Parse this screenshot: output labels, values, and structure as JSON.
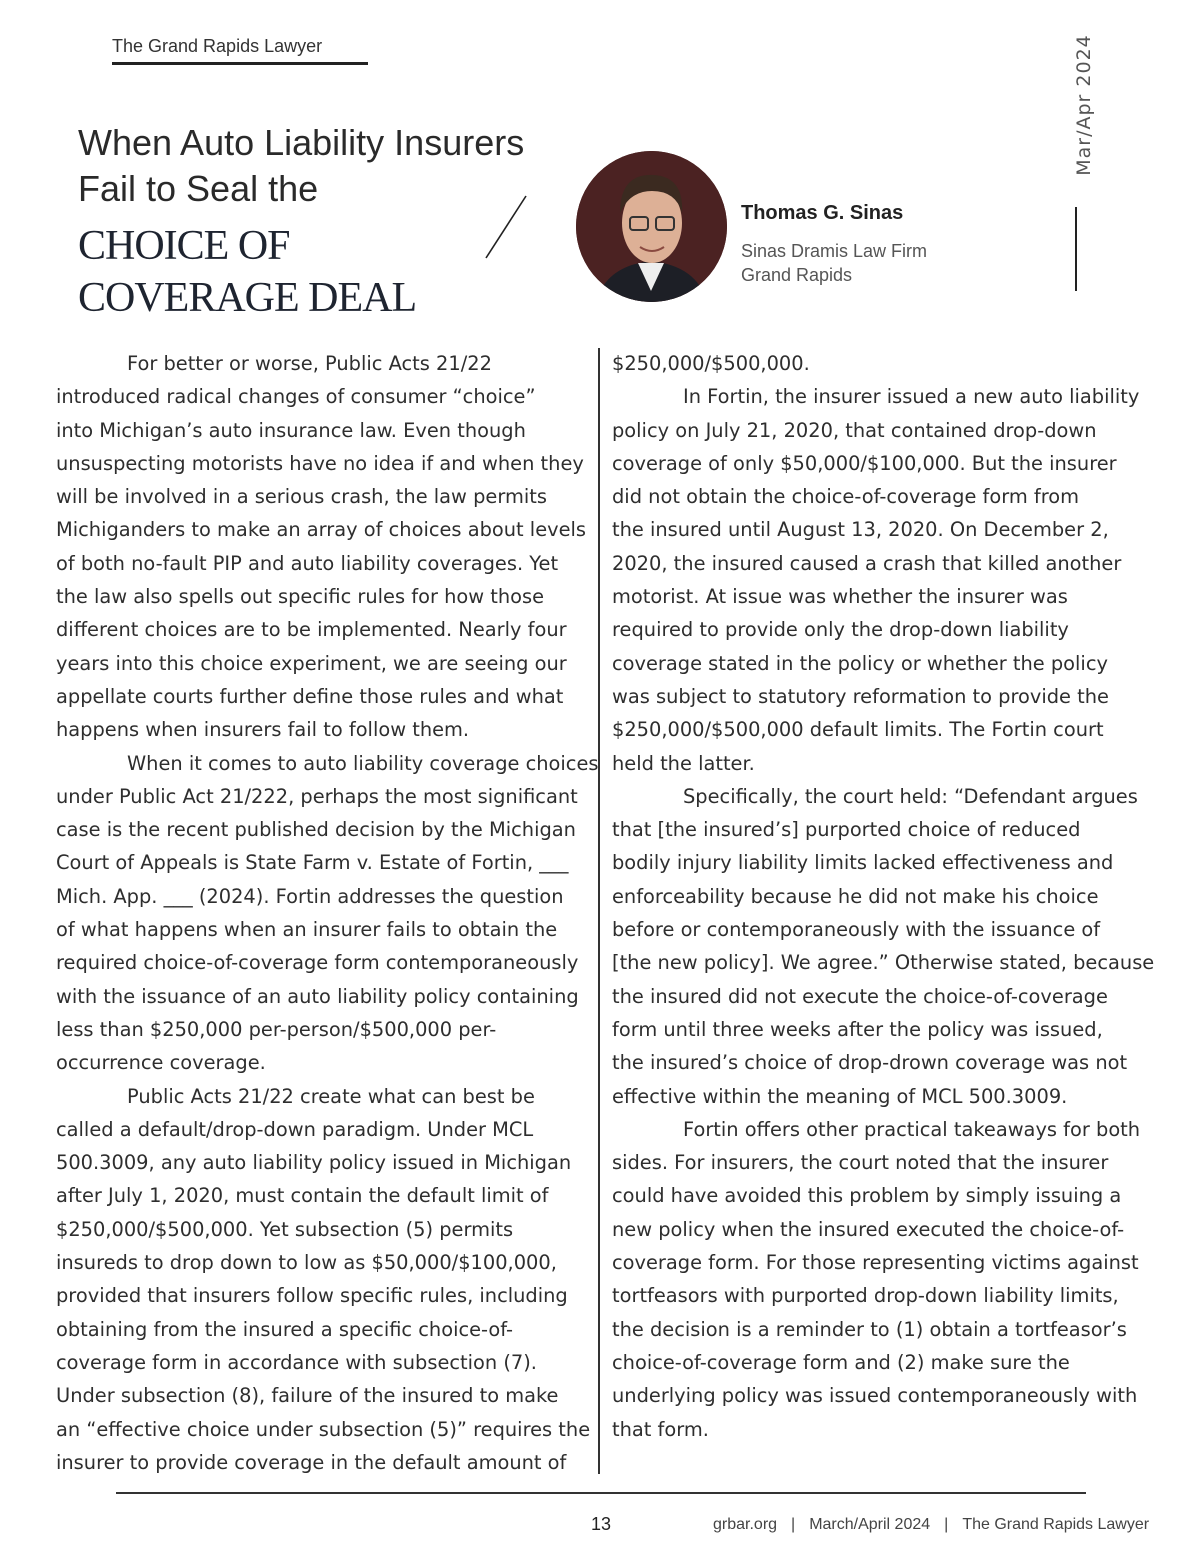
{
  "masthead": "The Grand Rapids Lawyer",
  "issue_vertical": "Mar/Apr 2024",
  "title": {
    "line1": "When Auto Liability Insurers",
    "line2": "Fail to Seal the",
    "line3": "CHOICE OF",
    "line4": "COVERAGE DEAL"
  },
  "author": {
    "name": "Thomas G. Sinas",
    "firm": "Sinas Dramis Law Firm",
    "city": "Grand Rapids",
    "photo": "author-headshot"
  },
  "body": {
    "left": [
      {
        "indent": true,
        "text": "For better or worse, Public Acts 21/22"
      },
      {
        "indent": false,
        "text": "introduced radical changes of consumer “choice”"
      },
      {
        "indent": false,
        "text": "into Michigan’s auto insurance law.  Even though"
      },
      {
        "indent": false,
        "text": "unsuspecting motorists have no idea if and when they"
      },
      {
        "indent": false,
        "text": "will be involved in a serious crash, the law permits"
      },
      {
        "indent": false,
        "text": "Michiganders to make an array of choices about levels"
      },
      {
        "indent": false,
        "text": "of both no-fault PIP and auto liability coverages.  Yet"
      },
      {
        "indent": false,
        "text": "the law also spells out specific rules for how those"
      },
      {
        "indent": false,
        "text": "different choices are to be implemented.  Nearly four"
      },
      {
        "indent": false,
        "text": "years into this choice experiment, we are seeing our"
      },
      {
        "indent": false,
        "text": "appellate courts further define those rules and what"
      },
      {
        "indent": false,
        "text": "happens when insurers fail to follow them."
      },
      {
        "indent": true,
        "text": "When it comes to auto liability coverage choices"
      },
      {
        "indent": false,
        "text": "under Public Act 21/222, perhaps the most significant"
      },
      {
        "indent": false,
        "text": "case is the recent published decision by the Michigan"
      },
      {
        "indent": false,
        "text": "Court of Appeals is State Farm v. Estate of Fortin, ___"
      },
      {
        "indent": false,
        "text": "Mich. App. ___ (2024).  Fortin addresses the question"
      },
      {
        "indent": false,
        "text": "of what happens when an insurer fails to obtain the"
      },
      {
        "indent": false,
        "text": "required choice-of-coverage form contemporaneously"
      },
      {
        "indent": false,
        "text": "with the issuance of an auto liability policy containing"
      },
      {
        "indent": false,
        "text": "less than $250,000 per-person/$500,000 per-"
      },
      {
        "indent": false,
        "text": "occurrence coverage."
      },
      {
        "indent": true,
        "text": "Public Acts 21/22 create what can best be"
      },
      {
        "indent": false,
        "text": "called a default/drop-down paradigm. Under MCL"
      },
      {
        "indent": false,
        "text": "500.3009, any auto liability policy issued in Michigan"
      },
      {
        "indent": false,
        "text": "after July 1, 2020, must contain the default limit of"
      },
      {
        "indent": false,
        "text": "$250,000/$500,000.  Yet subsection (5) permits"
      },
      {
        "indent": false,
        "text": "insureds to drop down to low as $50,000/$100,000,"
      },
      {
        "indent": false,
        "text": "provided that insurers follow specific rules, including"
      },
      {
        "indent": false,
        "text": "obtaining from the insured a specific choice-of-"
      },
      {
        "indent": false,
        "text": "coverage form in accordance with subsection (7)."
      },
      {
        "indent": false,
        "text": "Under subsection (8), failure of the insured to make"
      },
      {
        "indent": false,
        "text": "an “effective choice under subsection (5)” requires the"
      },
      {
        "indent": false,
        "text": "insurer to provide coverage in the default amount of"
      }
    ],
    "right": [
      {
        "indent": false,
        "text": "$250,000/$500,000."
      },
      {
        "indent": true,
        "text": "In Fortin, the insurer issued a new auto liability"
      },
      {
        "indent": false,
        "text": "policy on July 21, 2020, that contained drop-down"
      },
      {
        "indent": false,
        "text": "coverage of only $50,000/$100,000.  But the insurer"
      },
      {
        "indent": false,
        "text": "did not obtain the choice-of-coverage form from"
      },
      {
        "indent": false,
        "text": "the insured until August 13, 2020.  On December 2,"
      },
      {
        "indent": false,
        "text": "2020, the insured caused a crash that killed another"
      },
      {
        "indent": false,
        "text": "motorist.  At issue was whether the insurer was"
      },
      {
        "indent": false,
        "text": "required to provide only the drop-down liability"
      },
      {
        "indent": false,
        "text": "coverage stated in the policy or whether the policy"
      },
      {
        "indent": false,
        "text": "was subject to statutory reformation to provide the"
      },
      {
        "indent": false,
        "text": "$250,000/$500,000 default limits.  The Fortin court"
      },
      {
        "indent": false,
        "text": "held the latter."
      },
      {
        "indent": true,
        "text": "Specifically, the court held: “Defendant argues"
      },
      {
        "indent": false,
        "text": "that [the insured’s] purported choice of reduced"
      },
      {
        "indent": false,
        "text": "bodily injury liability limits lacked effectiveness and"
      },
      {
        "indent": false,
        "text": "enforceability because he did not make his choice"
      },
      {
        "indent": false,
        "text": "before or contemporaneously with the issuance of"
      },
      {
        "indent": false,
        "text": "[the new policy]. We agree.” Otherwise stated, because"
      },
      {
        "indent": false,
        "text": "the insured did not execute the choice-of-coverage"
      },
      {
        "indent": false,
        "text": "form until three weeks after the policy was issued,"
      },
      {
        "indent": false,
        "text": "the insured’s choice of drop-drown coverage was not"
      },
      {
        "indent": false,
        "text": "effective within the meaning of MCL 500.3009."
      },
      {
        "indent": true,
        "text": "Fortin offers other practical takeaways for both"
      },
      {
        "indent": false,
        "text": "sides.  For insurers, the court noted that the insurer"
      },
      {
        "indent": false,
        "text": "could have avoided this problem by simply issuing a"
      },
      {
        "indent": false,
        "text": "new policy when the insured executed the choice-of-"
      },
      {
        "indent": false,
        "text": "coverage form.  For those representing victims against"
      },
      {
        "indent": false,
        "text": "tortfeasors with purported drop-down liability limits,"
      },
      {
        "indent": false,
        "text": "the decision is a reminder to (1) obtain a tortfeasor’s"
      },
      {
        "indent": false,
        "text": "choice-of-coverage form and (2) make sure the"
      },
      {
        "indent": false,
        "text": "underlying policy was issued contemporaneously with"
      },
      {
        "indent": false,
        "text": "that form."
      }
    ]
  },
  "footer": {
    "page_number": "13",
    "site": "grbar.org",
    "issue": "March/April 2024",
    "publication": "The Grand Rapids Lawyer",
    "separator": "|"
  }
}
